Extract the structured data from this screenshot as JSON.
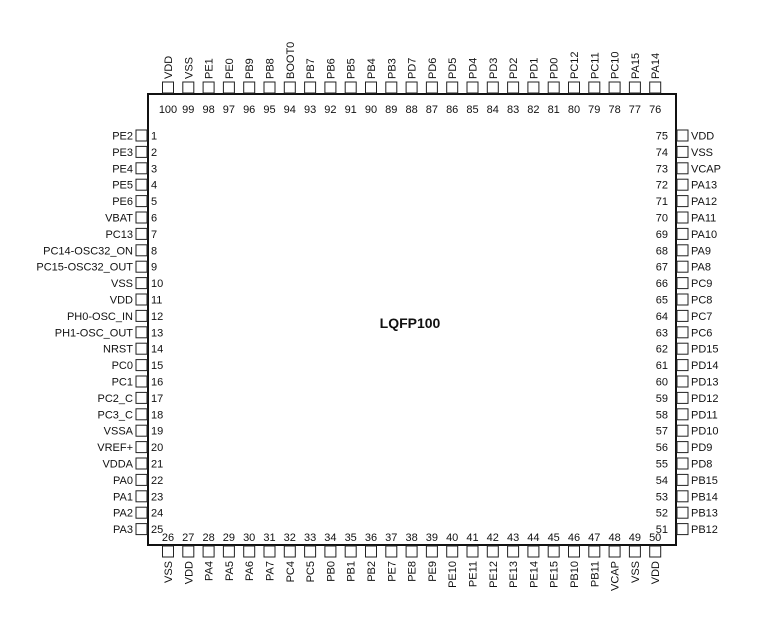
{
  "package": {
    "name": "LQFP100"
  },
  "pins": {
    "left": [
      {
        "num": "1",
        "name": "PE2"
      },
      {
        "num": "2",
        "name": "PE3"
      },
      {
        "num": "3",
        "name": "PE4"
      },
      {
        "num": "4",
        "name": "PE5"
      },
      {
        "num": "5",
        "name": "PE6"
      },
      {
        "num": "6",
        "name": "VBAT"
      },
      {
        "num": "7",
        "name": "PC13"
      },
      {
        "num": "8",
        "name": "PC14-OSC32_ON"
      },
      {
        "num": "9",
        "name": "PC15-OSC32_OUT"
      },
      {
        "num": "10",
        "name": "VSS"
      },
      {
        "num": "11",
        "name": "VDD"
      },
      {
        "num": "12",
        "name": "PH0-OSC_IN"
      },
      {
        "num": "13",
        "name": "PH1-OSC_OUT"
      },
      {
        "num": "14",
        "name": "NRST"
      },
      {
        "num": "15",
        "name": "PC0"
      },
      {
        "num": "16",
        "name": "PC1"
      },
      {
        "num": "17",
        "name": "PC2_C"
      },
      {
        "num": "18",
        "name": "PC3_C"
      },
      {
        "num": "19",
        "name": "VSSA"
      },
      {
        "num": "20",
        "name": "VREF+"
      },
      {
        "num": "21",
        "name": "VDDA"
      },
      {
        "num": "22",
        "name": "PA0"
      },
      {
        "num": "23",
        "name": "PA1"
      },
      {
        "num": "24",
        "name": "PA2"
      },
      {
        "num": "25",
        "name": "PA3"
      }
    ],
    "bottom": [
      {
        "num": "26",
        "name": "VSS"
      },
      {
        "num": "27",
        "name": "VDD"
      },
      {
        "num": "28",
        "name": "PA4"
      },
      {
        "num": "29",
        "name": "PA5"
      },
      {
        "num": "30",
        "name": "PA6"
      },
      {
        "num": "31",
        "name": "PA7"
      },
      {
        "num": "32",
        "name": "PC4"
      },
      {
        "num": "33",
        "name": "PC5"
      },
      {
        "num": "34",
        "name": "PB0"
      },
      {
        "num": "35",
        "name": "PB1"
      },
      {
        "num": "36",
        "name": "PB2"
      },
      {
        "num": "37",
        "name": "PE7"
      },
      {
        "num": "38",
        "name": "PE8"
      },
      {
        "num": "39",
        "name": "PE9"
      },
      {
        "num": "40",
        "name": "PE10"
      },
      {
        "num": "41",
        "name": "PE11"
      },
      {
        "num": "42",
        "name": "PE12"
      },
      {
        "num": "43",
        "name": "PE13"
      },
      {
        "num": "44",
        "name": "PE14"
      },
      {
        "num": "45",
        "name": "PE15"
      },
      {
        "num": "46",
        "name": "PB10"
      },
      {
        "num": "47",
        "name": "PB11"
      },
      {
        "num": "48",
        "name": "VCAP"
      },
      {
        "num": "49",
        "name": "VSS"
      },
      {
        "num": "50",
        "name": "VDD"
      }
    ],
    "right": [
      {
        "num": "75",
        "name": "VDD"
      },
      {
        "num": "74",
        "name": "VSS"
      },
      {
        "num": "73",
        "name": "VCAP"
      },
      {
        "num": "72",
        "name": "PA13"
      },
      {
        "num": "71",
        "name": "PA12"
      },
      {
        "num": "70",
        "name": "PA11"
      },
      {
        "num": "69",
        "name": "PA10"
      },
      {
        "num": "68",
        "name": "PA9"
      },
      {
        "num": "67",
        "name": "PA8"
      },
      {
        "num": "66",
        "name": "PC9"
      },
      {
        "num": "65",
        "name": "PC8"
      },
      {
        "num": "64",
        "name": "PC7"
      },
      {
        "num": "63",
        "name": "PC6"
      },
      {
        "num": "62",
        "name": "PD15"
      },
      {
        "num": "61",
        "name": "PD14"
      },
      {
        "num": "60",
        "name": "PD13"
      },
      {
        "num": "59",
        "name": "PD12"
      },
      {
        "num": "58",
        "name": "PD11"
      },
      {
        "num": "57",
        "name": "PD10"
      },
      {
        "num": "56",
        "name": "PD9"
      },
      {
        "num": "55",
        "name": "PD8"
      },
      {
        "num": "54",
        "name": "PB15"
      },
      {
        "num": "53",
        "name": "PB14"
      },
      {
        "num": "52",
        "name": "PB13"
      },
      {
        "num": "51",
        "name": "PB12"
      }
    ],
    "top": [
      {
        "num": "100",
        "name": "VDD"
      },
      {
        "num": "99",
        "name": "VSS"
      },
      {
        "num": "98",
        "name": "PE1"
      },
      {
        "num": "97",
        "name": "PE0"
      },
      {
        "num": "96",
        "name": "PB9"
      },
      {
        "num": "95",
        "name": "PB8"
      },
      {
        "num": "94",
        "name": "BOOT0"
      },
      {
        "num": "93",
        "name": "PB7"
      },
      {
        "num": "92",
        "name": "PB6"
      },
      {
        "num": "91",
        "name": "PB5"
      },
      {
        "num": "90",
        "name": "PB4"
      },
      {
        "num": "89",
        "name": "PB3"
      },
      {
        "num": "88",
        "name": "PD7"
      },
      {
        "num": "87",
        "name": "PD6"
      },
      {
        "num": "86",
        "name": "PD5"
      },
      {
        "num": "85",
        "name": "PD4"
      },
      {
        "num": "84",
        "name": "PD3"
      },
      {
        "num": "83",
        "name": "PD2"
      },
      {
        "num": "82",
        "name": "PD1"
      },
      {
        "num": "81",
        "name": "PD0"
      },
      {
        "num": "80",
        "name": "PC12"
      },
      {
        "num": "79",
        "name": "PC11"
      },
      {
        "num": "78",
        "name": "PC10"
      },
      {
        "num": "77",
        "name": "PA15"
      },
      {
        "num": "76",
        "name": "PA14"
      }
    ]
  }
}
